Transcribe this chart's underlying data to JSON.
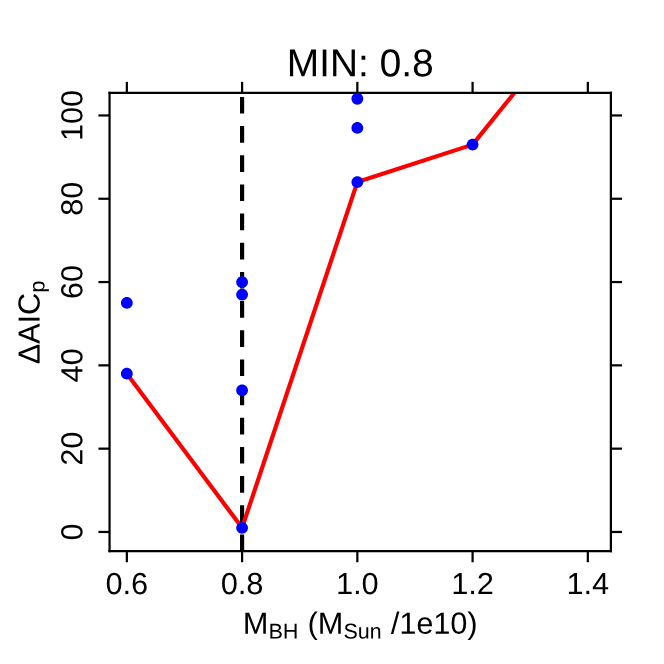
{
  "chart_data": {
    "type": "scatter",
    "title": "MIN: 0.8",
    "xlabel": "M$_{BH}$ (M$_{Sun}$ /1e10)",
    "ylabel": "ΔAIC$_{p}$",
    "series": [
      {
        "color": "#0000ff",
        "marker": "circle",
        "x": [
          0.6,
          0.6,
          0.8,
          0.8,
          0.8,
          0.8,
          1.0,
          1.0,
          1.0,
          1.2
        ],
        "values": [
          55,
          38,
          60,
          57,
          34,
          1,
          104,
          97,
          84,
          93
        ]
      },
      {
        "type": "line",
        "color": "#ff0000",
        "marker": "none",
        "x": [
          0.6,
          0.8,
          1.0,
          1.2,
          1.27
        ],
        "values": [
          38,
          1,
          84,
          93,
          105
        ]
      }
    ],
    "ref_lines": [
      {
        "axis": "x",
        "value": 0.8,
        "color": "#000000",
        "line_style": "dashed"
      }
    ],
    "xlim": [
      0.57,
      1.44
    ],
    "ylim": [
      -4.6,
      105.4
    ],
    "xticks": [
      {
        "value": 0.6,
        "label": "0.6"
      },
      {
        "value": 0.8,
        "label": "0.8"
      },
      {
        "value": 1.0,
        "label": "1.0"
      },
      {
        "value": 1.2,
        "label": "1.2"
      },
      {
        "value": 1.4,
        "label": "1.4"
      }
    ],
    "yticks": [
      0,
      20,
      40,
      60,
      80,
      100
    ],
    "grid": false,
    "legend": false
  }
}
